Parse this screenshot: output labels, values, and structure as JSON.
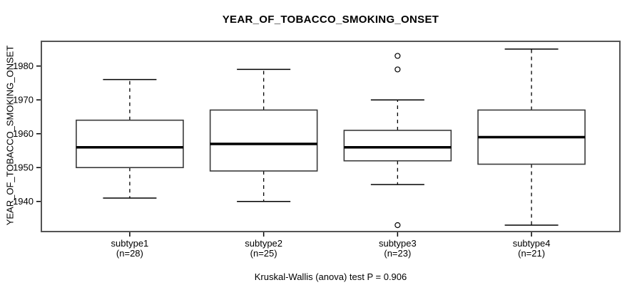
{
  "chart_data": {
    "type": "boxplot",
    "title": "YEAR_OF_TOBACCO_SMOKING_ONSET",
    "ylabel": "YEAR_OF_TOBACCO_SMOKING_ONSET",
    "xlabel": "",
    "caption": "Kruskal-Wallis (anova) test P = 0.906",
    "y_ticks": [
      1940,
      1950,
      1960,
      1970,
      1980
    ],
    "ylim": [
      1931.1,
      1987.3
    ],
    "grid": false,
    "legend": "none",
    "groups": [
      {
        "label": "subtype1",
        "n_label": "(n=28)",
        "n": 28,
        "whisker_low": 1941,
        "q1": 1950,
        "median": 1956,
        "q3": 1964,
        "whisker_high": 1976,
        "outliers": []
      },
      {
        "label": "subtype2",
        "n_label": "(n=25)",
        "n": 25,
        "whisker_low": 1940,
        "q1": 1949,
        "median": 1957,
        "q3": 1967,
        "whisker_high": 1979,
        "outliers": []
      },
      {
        "label": "subtype3",
        "n_label": "(n=23)",
        "n": 23,
        "whisker_low": 1945,
        "q1": 1952,
        "median": 1956,
        "q3": 1961,
        "whisker_high": 1970,
        "outliers": [
          1983,
          1979,
          1933
        ]
      },
      {
        "label": "subtype4",
        "n_label": "(n=21)",
        "n": 21,
        "whisker_low": 1933,
        "q1": 1951,
        "median": 1959,
        "q3": 1967,
        "whisker_high": 1985,
        "outliers": []
      }
    ],
    "colors": {
      "background": "#ffffff",
      "plot_border": "#545454",
      "box_border": "#3a3a3a",
      "box_fill": "#ffffff",
      "median": "#000000",
      "whisker": "#000000",
      "text": "#000000"
    }
  }
}
